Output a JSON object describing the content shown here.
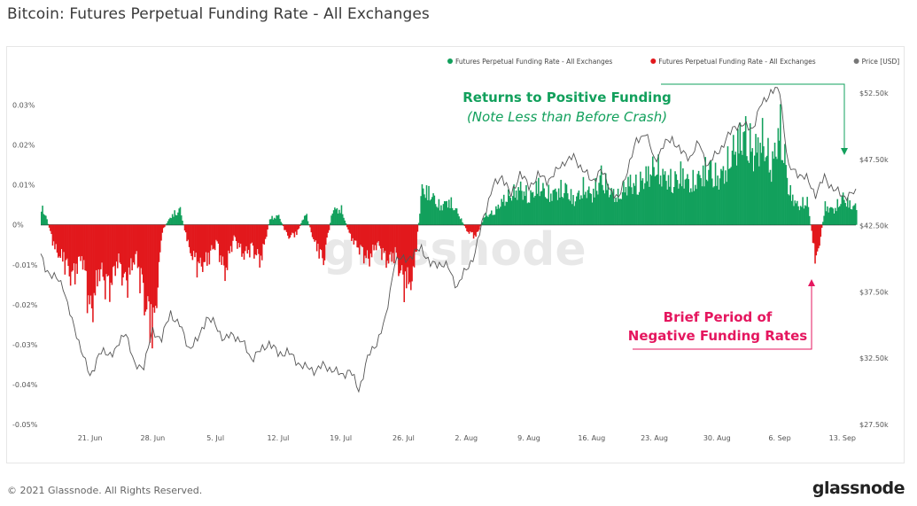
{
  "title": "Bitcoin: Futures Perpetual Funding Rate - All Exchanges",
  "footer": {
    "copyright": "© 2021 Glassnode. All Rights Reserved.",
    "logo": "glassnode"
  },
  "colors": {
    "positive": "#12a05c",
    "negative": "#e2181c",
    "price": "#555555",
    "annotation_green": "#12a05c",
    "annotation_red": "#e5175f"
  },
  "chart_data": {
    "type": "bar",
    "watermark": "glassnode",
    "legend": [
      {
        "label": "Futures Perpetual Funding Rate - All Exchanges",
        "color": "#12a05c"
      },
      {
        "label": "Futures Perpetual Funding Rate - All Exchanges",
        "color": "#e2181c"
      },
      {
        "label": "Price [USD]",
        "color": "#777777"
      }
    ],
    "x_ticks": [
      "21. Jun",
      "28. Jun",
      "5. Jul",
      "12. Jul",
      "19. Jul",
      "26. Jul",
      "2. Aug",
      "9. Aug",
      "16. Aug",
      "23. Aug",
      "30. Aug",
      "6. Sep",
      "13. Sep"
    ],
    "x_tick_days": [
      21,
      28,
      35,
      42,
      49,
      56,
      63,
      70,
      77,
      84,
      91,
      98,
      105
    ],
    "x_range_days": [
      15.5,
      106.5
    ],
    "y_left_ticks": [
      "0.03%",
      "0.02%",
      "0.01%",
      "0%",
      "-0.01%",
      "-0.02%",
      "-0.03%",
      "-0.04%",
      "-0.05%"
    ],
    "y_left_values": [
      0.03,
      0.02,
      0.01,
      0,
      -0.01,
      -0.02,
      -0.03,
      -0.04,
      -0.05
    ],
    "y_left_range": [
      -0.05,
      0.033
    ],
    "y_right_ticks": [
      "$52.50k",
      "$47.50k",
      "$42.50k",
      "$37.50k",
      "$32.50k",
      "$27.50k"
    ],
    "y_right_values": [
      52500,
      47500,
      42500,
      37500,
      32500,
      27500
    ],
    "y_right_range": [
      27500,
      52500
    ],
    "funding_rate": {
      "days": [
        15.5,
        16,
        17,
        18,
        19,
        20,
        21,
        22,
        23,
        24,
        25,
        26,
        27,
        28,
        29,
        30,
        31,
        32,
        33,
        34,
        35,
        36,
        37,
        38,
        39,
        40,
        41,
        42,
        43,
        44,
        45,
        46,
        47,
        48,
        49,
        50,
        51,
        52,
        53,
        54,
        55,
        56,
        57,
        58,
        59,
        60,
        61,
        62,
        63,
        64,
        65,
        66,
        67,
        68,
        69,
        70,
        71,
        72,
        73,
        74,
        75,
        76,
        77,
        78,
        79,
        80,
        81,
        82,
        83,
        84,
        85,
        86,
        87,
        88,
        89,
        90,
        91,
        92,
        93,
        94,
        95,
        96,
        97,
        98,
        99,
        100,
        101,
        102,
        103,
        104,
        105,
        106
      ],
      "values": [
        0.006,
        0.003,
        -0.008,
        -0.012,
        -0.018,
        -0.01,
        -0.03,
        -0.015,
        -0.022,
        -0.012,
        -0.02,
        -0.01,
        -0.025,
        -0.036,
        -0.002,
        0.003,
        0.005,
        -0.008,
        -0.014,
        -0.012,
        -0.006,
        -0.016,
        -0.004,
        -0.01,
        -0.008,
        -0.012,
        0.002,
        0.003,
        -0.004,
        -0.003,
        0.004,
        -0.006,
        -0.012,
        0.005,
        0.005,
        -0.004,
        -0.008,
        -0.012,
        -0.006,
        -0.012,
        -0.01,
        -0.02,
        -0.018,
        0.012,
        0.01,
        0.006,
        0.008,
        0.004,
        -0.002,
        -0.004,
        0.003,
        0.004,
        0.008,
        0.01,
        0.012,
        0.009,
        0.013,
        0.01,
        0.011,
        0.012,
        0.008,
        0.012,
        0.01,
        0.016,
        0.011,
        0.009,
        0.014,
        0.013,
        0.016,
        0.019,
        0.016,
        0.014,
        0.017,
        0.013,
        0.016,
        0.019,
        0.015,
        0.019,
        0.026,
        0.03,
        0.024,
        0.028,
        0.019,
        0.032,
        0.011,
        0.006,
        0.008,
        -0.013,
        0.006,
        0.005,
        0.009,
        0.006
      ]
    },
    "price": {
      "days": [
        15.5,
        16,
        17,
        18,
        19,
        20,
        21,
        22,
        23,
        24,
        25,
        26,
        27,
        28,
        29,
        30,
        31,
        32,
        33,
        34,
        35,
        36,
        37,
        38,
        39,
        40,
        41,
        42,
        43,
        44,
        45,
        46,
        47,
        48,
        49,
        50,
        51,
        52,
        53,
        54,
        55,
        56,
        57,
        58,
        59,
        60,
        61,
        62,
        63,
        64,
        65,
        66,
        67,
        68,
        69,
        70,
        71,
        72,
        73,
        74,
        75,
        76,
        77,
        78,
        79,
        80,
        81,
        82,
        83,
        84,
        85,
        86,
        87,
        88,
        89,
        90,
        91,
        92,
        93,
        94,
        95,
        96,
        97,
        98,
        99,
        100,
        101,
        102,
        103,
        104,
        105,
        106
      ],
      "values": [
        40200,
        39300,
        38600,
        38000,
        35200,
        33300,
        31000,
        32900,
        32800,
        33200,
        34600,
        31800,
        32000,
        34500,
        34000,
        35900,
        35000,
        33300,
        33800,
        35600,
        35000,
        33900,
        34300,
        33700,
        32500,
        33000,
        33700,
        32800,
        33000,
        32300,
        31800,
        31600,
        31900,
        31700,
        31200,
        31600,
        30100,
        32500,
        33700,
        35400,
        39800,
        40000,
        40200,
        40900,
        39500,
        39700,
        39300,
        37900,
        39200,
        40400,
        43400,
        45400,
        46300,
        44700,
        46500,
        45400,
        46300,
        45900,
        46500,
        47400,
        47600,
        46800,
        45800,
        46700,
        45400,
        44400,
        46800,
        48800,
        49600,
        47400,
        48500,
        49100,
        48000,
        47700,
        48700,
        47000,
        48000,
        48900,
        50100,
        50000,
        49900,
        51700,
        52600,
        52700,
        46800,
        46500,
        46000,
        44900,
        46100,
        45300,
        44700,
        44900
      ]
    },
    "annotations": [
      {
        "line1": "Returns to Positive Funding",
        "line2": "(Note Less than Before Crash)",
        "color": "#12a05c"
      },
      {
        "line1": "Brief Period of",
        "line2": "Negative Funding Rates",
        "color": "#e5175f"
      }
    ]
  }
}
